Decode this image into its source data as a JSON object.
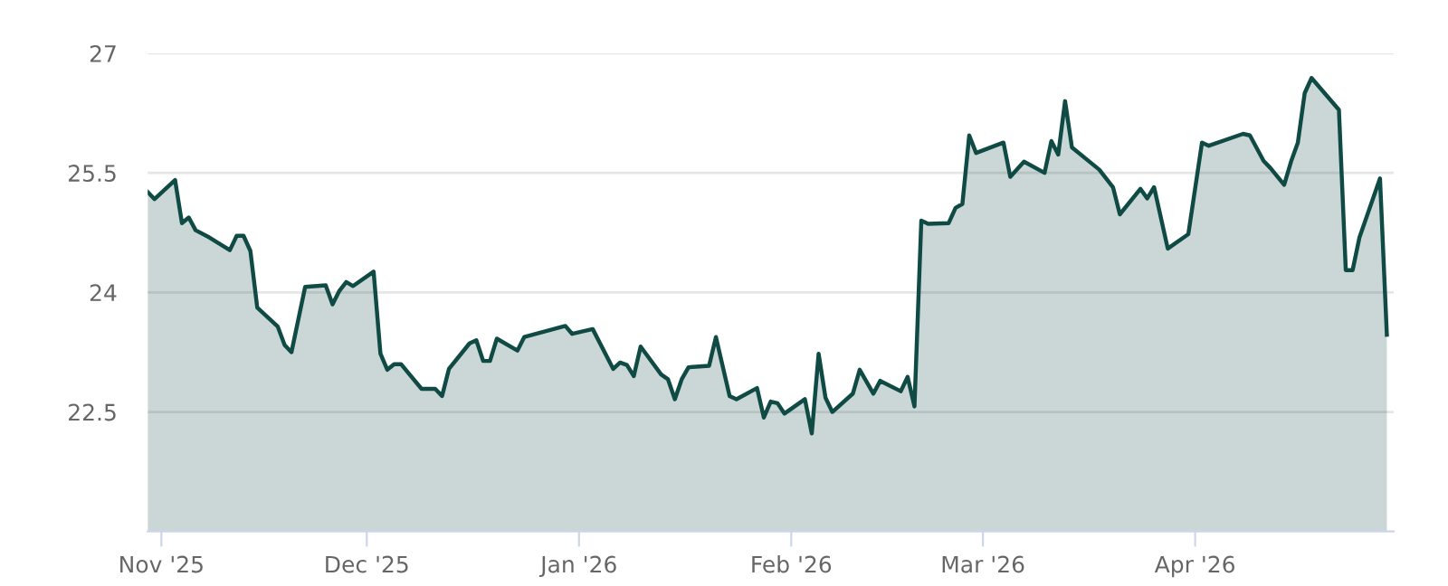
{
  "chart_data": {
    "type": "area",
    "grid": "y",
    "marker": "none",
    "line_style": "solid",
    "x": [
      "2025-10-30",
      "2025-10-31",
      "2025-11-03",
      "2025-11-04",
      "2025-11-05",
      "2025-11-06",
      "2025-11-08",
      "2025-11-11",
      "2025-11-12",
      "2025-11-13",
      "2025-11-14",
      "2025-11-15",
      "2025-11-18",
      "2025-11-19",
      "2025-11-20",
      "2025-11-22",
      "2025-11-25",
      "2025-11-26",
      "2025-11-27",
      "2025-11-28",
      "2025-11-29",
      "2025-12-02",
      "2025-12-03",
      "2025-12-04",
      "2025-12-05",
      "2025-12-06",
      "2025-12-09",
      "2025-12-11",
      "2025-12-12",
      "2025-12-13",
      "2025-12-16",
      "2025-12-17",
      "2025-12-18",
      "2025-12-19",
      "2025-12-20",
      "2025-12-23",
      "2025-12-24",
      "2025-12-30",
      "2025-12-31",
      "2026-01-03",
      "2026-01-06",
      "2026-01-07",
      "2026-01-08",
      "2026-01-09",
      "2026-01-10",
      "2026-01-13",
      "2026-01-14",
      "2026-01-15",
      "2026-01-16",
      "2026-01-17",
      "2026-01-20",
      "2026-01-21",
      "2026-01-23",
      "2026-01-24",
      "2026-01-27",
      "2026-01-28",
      "2026-01-29",
      "2026-01-30",
      "2026-01-31",
      "2026-02-03",
      "2026-02-04",
      "2026-02-05",
      "2026-02-06",
      "2026-02-07",
      "2026-02-10",
      "2026-02-11",
      "2026-02-13",
      "2026-02-14",
      "2026-02-17",
      "2026-02-18",
      "2026-02-19",
      "2026-02-20",
      "2026-02-21",
      "2026-02-24",
      "2026-02-25",
      "2026-02-26",
      "2026-02-27",
      "2026-02-28",
      "2026-03-04",
      "2026-03-05",
      "2026-03-07",
      "2026-03-10",
      "2026-03-11",
      "2026-03-12",
      "2026-03-13",
      "2026-03-14",
      "2026-03-18",
      "2026-03-19",
      "2026-03-20",
      "2026-03-21",
      "2026-03-24",
      "2026-03-25",
      "2026-03-26",
      "2026-03-28",
      "2026-03-31",
      "2026-04-02",
      "2026-04-03",
      "2026-04-08",
      "2026-04-09",
      "2026-04-11",
      "2026-04-12",
      "2026-04-14",
      "2026-04-15",
      "2026-04-16",
      "2026-04-17",
      "2026-04-18",
      "2026-04-22",
      "2026-04-23",
      "2026-04-24",
      "2026-04-25",
      "2026-04-28",
      "2026-04-29"
    ],
    "series": [
      {
        "color": "#0f4a44",
        "values": [
          25.26,
          25.17,
          25.41,
          24.87,
          24.94,
          24.78,
          24.69,
          24.53,
          24.71,
          24.71,
          24.52,
          23.81,
          23.57,
          23.34,
          23.25,
          24.07,
          24.09,
          23.85,
          24.02,
          24.13,
          24.08,
          24.26,
          23.23,
          23.03,
          23.1,
          23.1,
          22.79,
          22.79,
          22.7,
          23.04,
          23.36,
          23.4,
          23.14,
          23.14,
          23.42,
          23.27,
          23.44,
          23.58,
          23.48,
          23.54,
          23.04,
          23.12,
          23.09,
          22.95,
          23.32,
          22.97,
          22.91,
          22.66,
          22.91,
          23.06,
          23.08,
          23.44,
          22.7,
          22.66,
          22.8,
          22.43,
          22.63,
          22.61,
          22.48,
          22.66,
          22.23,
          23.23,
          22.68,
          22.5,
          22.73,
          23.03,
          22.73,
          22.89,
          22.76,
          22.94,
          22.57,
          24.9,
          24.86,
          24.87,
          25.06,
          25.11,
          25.97,
          25.75,
          25.88,
          25.45,
          25.64,
          25.5,
          25.9,
          25.73,
          26.4,
          25.82,
          25.54,
          25.43,
          25.32,
          24.98,
          25.3,
          25.18,
          25.32,
          24.55,
          24.73,
          25.88,
          25.84,
          25.99,
          25.97,
          25.65,
          25.56,
          25.35,
          25.64,
          25.88,
          26.5,
          26.69,
          26.29,
          24.28,
          24.28,
          24.69,
          25.43,
          23.47
        ]
      }
    ],
    "xlim": [
      "2025-10-30",
      "2026-04-30"
    ],
    "xticks": [
      {
        "value": "2025-11-01",
        "label": "Nov '25"
      },
      {
        "value": "2025-12-01",
        "label": "Dec '25"
      },
      {
        "value": "2026-01-01",
        "label": "Jan '26"
      },
      {
        "value": "2026-02-01",
        "label": "Feb '26"
      },
      {
        "value": "2026-03-01",
        "label": "Mar '26"
      },
      {
        "value": "2026-04-01",
        "label": "Apr '26"
      }
    ],
    "ylim": [
      21,
      27
    ],
    "yticks": [
      22.5,
      24,
      25.5,
      27
    ]
  }
}
